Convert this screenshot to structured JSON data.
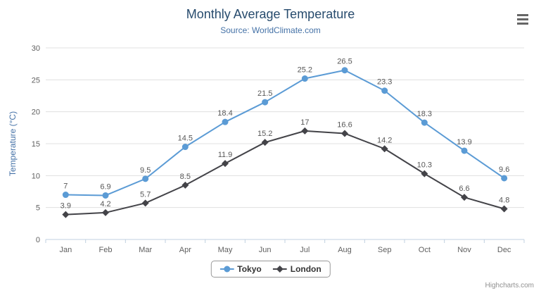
{
  "chart_data": {
    "type": "line",
    "title": "Monthly Average Temperature",
    "subtitle": "Source: WorldClimate.com",
    "xlabel": "",
    "ylabel": "Temperature (°C)",
    "ylim": [
      0,
      30
    ],
    "ytick_interval": 5,
    "grid": true,
    "legend_position": "bottom",
    "categories": [
      "Jan",
      "Feb",
      "Mar",
      "Apr",
      "May",
      "Jun",
      "Jul",
      "Aug",
      "Sep",
      "Oct",
      "Nov",
      "Dec"
    ],
    "series": [
      {
        "name": "Tokyo",
        "color": "#5b9bd5",
        "marker": "circle",
        "values": [
          7,
          6.9,
          9.5,
          14.5,
          18.4,
          21.5,
          25.2,
          26.5,
          23.3,
          18.3,
          13.9,
          9.6
        ]
      },
      {
        "name": "London",
        "color": "#434348",
        "marker": "diamond",
        "values": [
          3.9,
          4.2,
          5.7,
          8.5,
          11.9,
          15.2,
          17,
          16.6,
          14.2,
          10.3,
          6.6,
          4.8
        ]
      }
    ],
    "theme": {
      "title_color": "#274b6d",
      "subtitle_color": "#4572a7",
      "axis_label_color": "#606060",
      "axis_title_color": "#4572a7",
      "grid_color": "#e0e0e0",
      "axis_line_color": "#c0d0e0",
      "data_label_color": "#575757",
      "legend_border_color": "#999999",
      "credits_color": "#909090"
    }
  },
  "icons": {
    "export_menu": "hamburger-menu-icon"
  },
  "credits": {
    "label": "Highcharts.com"
  }
}
